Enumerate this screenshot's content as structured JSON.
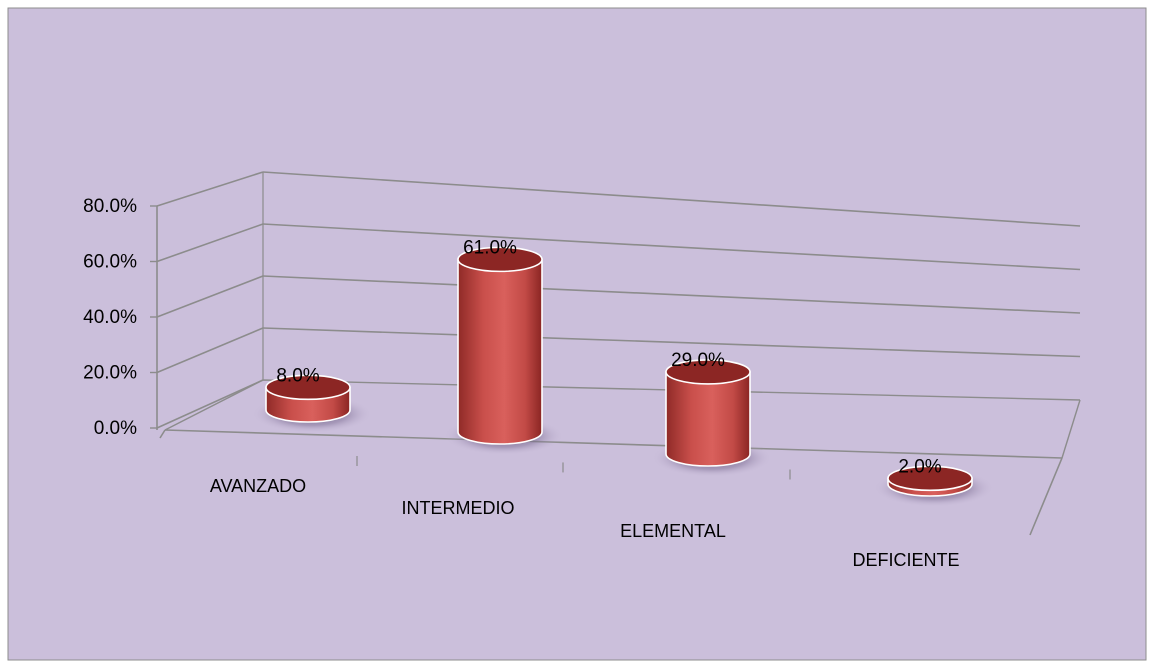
{
  "colors": {
    "background": "#cbbfdb",
    "frame": "#8e8e8e",
    "gridline": "#8c8c8c",
    "bar": "#c0504d",
    "bar_top": "#8c2624",
    "text": "#000000"
  },
  "chart_data": {
    "type": "bar",
    "variant": "3d-cylinder",
    "categories": [
      "AVANZADO",
      "INTERMEDIO",
      "ELEMENTAL",
      "DEFICIENTE"
    ],
    "values": [
      8.0,
      61.0,
      29.0,
      2.0
    ],
    "data_labels": [
      "8.0%",
      "61.0%",
      "29.0%",
      "2.0%"
    ],
    "y_ticks": [
      "0.0%",
      "20.0%",
      "40.0%",
      "60.0%",
      "80.0%"
    ],
    "y_tick_values": [
      0,
      20,
      40,
      60,
      80
    ],
    "ylim": [
      0,
      80
    ],
    "grid": true,
    "legend": "none"
  }
}
